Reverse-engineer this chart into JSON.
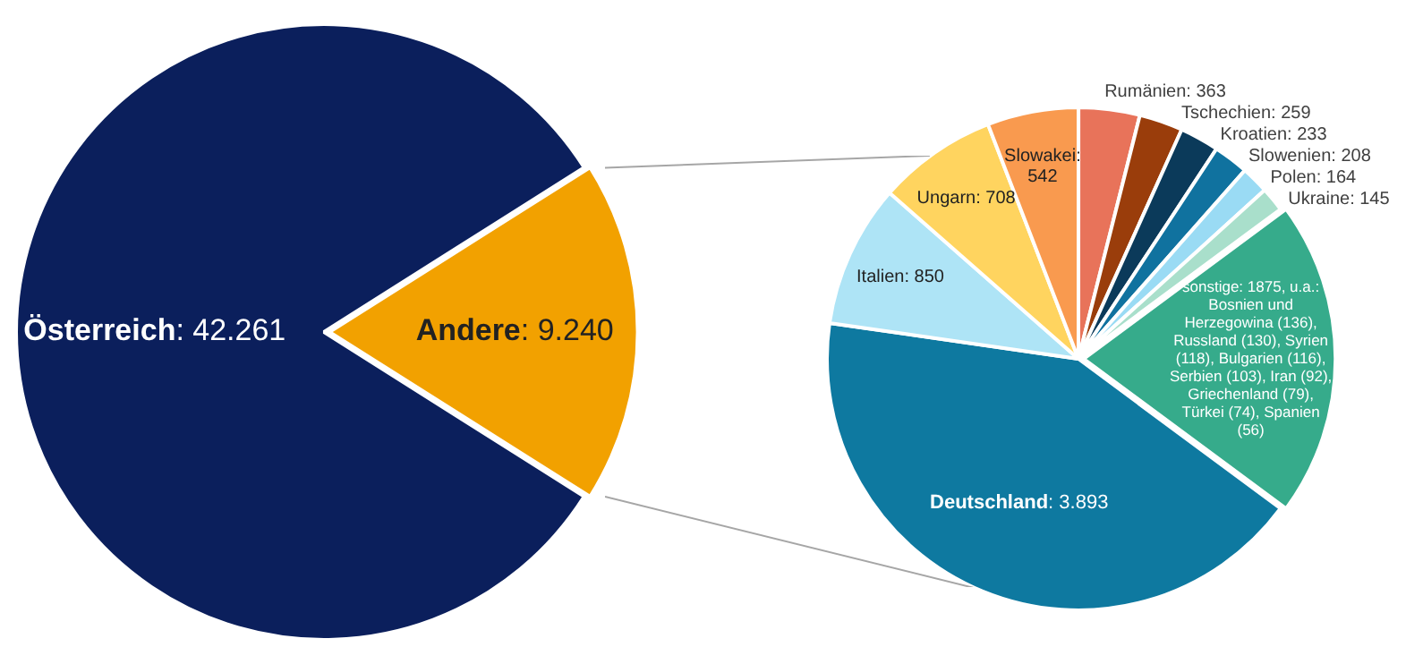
{
  "chart_data": [
    {
      "type": "pie",
      "categories": [
        "Österreich",
        "Andere"
      ],
      "values": [
        42261,
        9240
      ],
      "value_labels": [
        ": 42.261",
        ": 9.240"
      ],
      "colors": [
        "#0b1f5c",
        "#f2a100"
      ]
    },
    {
      "type": "pie",
      "categories": [
        "Deutschland",
        "Italien",
        "Ungarn",
        "Slowakei",
        "Rumänien",
        "Tschechien",
        "Kroatien",
        "Slowenien",
        "Polen",
        "Ukraine",
        "sonstige"
      ],
      "values": [
        3893,
        850,
        708,
        542,
        363,
        259,
        233,
        208,
        164,
        145,
        1875
      ],
      "value_labels": [
        ": 3.893",
        ": 850",
        ": 708",
        ": 542",
        ": 363",
        ": 259",
        ": 233",
        ": 208",
        ": 164",
        ": 145",
        ": 1875,"
      ],
      "colors": [
        "#0e79a0",
        "#aee4f6",
        "#ffd45f",
        "#f99a4f",
        "#e8735a",
        "#9a3d0b",
        "#0b3a5a",
        "#10729f",
        "#9adbf4",
        "#a9dfcb",
        "#36ab8b"
      ],
      "annotations": [
        {
          "text": "u.a.: Bosnien und Herzegowina (136), Russland (130), Syrien (118), Bulgarien (116), Serbien (103), Iran (92), Griechenland (79), Türkei (74), Spanien (56)",
          "x": "sonstige"
        }
      ]
    }
  ]
}
